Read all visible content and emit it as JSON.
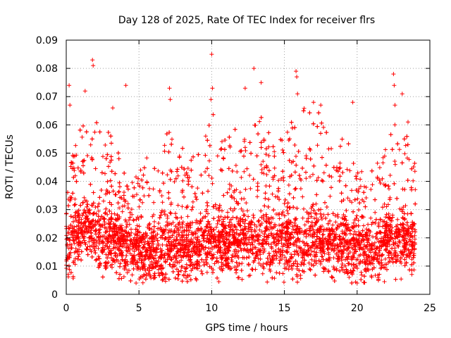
{
  "chart_data": {
    "type": "scatter",
    "title": "Day 128 of 2025, Rate Of TEC Index for receiver flrs",
    "xlabel": "GPS time / hours",
    "ylabel": "ROTI / TECUs",
    "xlim": [
      0,
      25
    ],
    "ylim": [
      0,
      0.09
    ],
    "xticks": [
      0,
      5,
      10,
      15,
      20,
      25
    ],
    "yticks": [
      0,
      0.01,
      0.02,
      0.03,
      0.04,
      0.05,
      0.06,
      0.07,
      0.08,
      0.09
    ],
    "xtick_labels": [
      "0",
      "5",
      "10",
      "15",
      "20",
      "25"
    ],
    "ytick_labels": [
      "0",
      "0.01",
      "0.02",
      "0.03",
      "0.04",
      "0.05",
      "0.06",
      "0.07",
      "0.08",
      "0.09"
    ],
    "grid": true,
    "marker": "plus",
    "series_color": "#ff0000",
    "data_range_hours": [
      0,
      24
    ],
    "envelope": {
      "hours": [
        0,
        0.5,
        1,
        1.5,
        2,
        2.5,
        3,
        3.5,
        4,
        4.5,
        5,
        5.5,
        6,
        6.5,
        7,
        7.5,
        8,
        8.5,
        9,
        9.5,
        10,
        10.5,
        11,
        11.5,
        12,
        12.5,
        13,
        13.5,
        14,
        14.5,
        15,
        15.5,
        16,
        16.5,
        17,
        17.5,
        18,
        18.5,
        19,
        19.5,
        20,
        20.5,
        21,
        21.5,
        22,
        22.5,
        23,
        23.5,
        24
      ],
      "typical": [
        0.016,
        0.019,
        0.022,
        0.024,
        0.022,
        0.018,
        0.019,
        0.019,
        0.017,
        0.016,
        0.015,
        0.015,
        0.015,
        0.015,
        0.016,
        0.016,
        0.016,
        0.016,
        0.016,
        0.017,
        0.019,
        0.019,
        0.018,
        0.018,
        0.018,
        0.018,
        0.019,
        0.019,
        0.018,
        0.018,
        0.018,
        0.018,
        0.018,
        0.018,
        0.018,
        0.018,
        0.017,
        0.017,
        0.017,
        0.016,
        0.016,
        0.016,
        0.016,
        0.016,
        0.017,
        0.019,
        0.019,
        0.018,
        0.017
      ],
      "upper": [
        0.045,
        0.05,
        0.06,
        0.06,
        0.063,
        0.055,
        0.058,
        0.055,
        0.045,
        0.04,
        0.045,
        0.05,
        0.045,
        0.045,
        0.06,
        0.05,
        0.05,
        0.048,
        0.05,
        0.055,
        0.07,
        0.065,
        0.06,
        0.058,
        0.062,
        0.064,
        0.065,
        0.063,
        0.055,
        0.058,
        0.055,
        0.062,
        0.06,
        0.065,
        0.065,
        0.06,
        0.058,
        0.055,
        0.055,
        0.05,
        0.048,
        0.045,
        0.045,
        0.048,
        0.055,
        0.06,
        0.062,
        0.055,
        0.045
      ]
    },
    "notable_points": [
      {
        "x": 0.2,
        "y": 0.074
      },
      {
        "x": 0.25,
        "y": 0.067
      },
      {
        "x": 1.8,
        "y": 0.083
      },
      {
        "x": 1.85,
        "y": 0.081
      },
      {
        "x": 1.3,
        "y": 0.072
      },
      {
        "x": 4.1,
        "y": 0.074
      },
      {
        "x": 3.2,
        "y": 0.066
      },
      {
        "x": 7.1,
        "y": 0.073
      },
      {
        "x": 7.15,
        "y": 0.069
      },
      {
        "x": 10.0,
        "y": 0.085
      },
      {
        "x": 10.05,
        "y": 0.073
      },
      {
        "x": 9.95,
        "y": 0.069
      },
      {
        "x": 12.3,
        "y": 0.073
      },
      {
        "x": 12.9,
        "y": 0.08
      },
      {
        "x": 13.4,
        "y": 0.075
      },
      {
        "x": 15.8,
        "y": 0.079
      },
      {
        "x": 15.85,
        "y": 0.077
      },
      {
        "x": 15.9,
        "y": 0.071
      },
      {
        "x": 17.0,
        "y": 0.068
      },
      {
        "x": 17.5,
        "y": 0.067
      },
      {
        "x": 19.7,
        "y": 0.068
      },
      {
        "x": 22.5,
        "y": 0.078
      },
      {
        "x": 22.55,
        "y": 0.074
      },
      {
        "x": 23.1,
        "y": 0.071
      },
      {
        "x": 22.6,
        "y": 0.067
      },
      {
        "x": 23.5,
        "y": 0.061
      },
      {
        "x": 20.0,
        "y": 0.004
      },
      {
        "x": 4.8,
        "y": 0.004
      }
    ]
  }
}
